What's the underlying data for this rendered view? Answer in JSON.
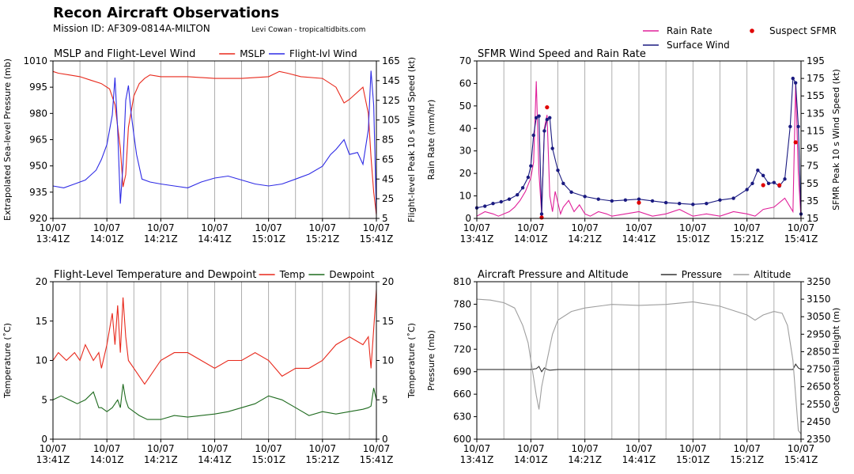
{
  "header": {
    "title": "Recon Aircraft Observations",
    "subtitle": "Mission ID: AF309-0814A-MILTON",
    "credit": "Levi Cowan - tropicaltidbits.com"
  },
  "chart_data": [
    {
      "id": "mslp_wind",
      "type": "line",
      "title": "MSLP and Flight-Level Wind",
      "x_ticks": [
        "10/07\n13:41Z",
        "10/07\n14:01Z",
        "10/07\n14:21Z",
        "10/07\n14:41Z",
        "10/07\n15:01Z",
        "10/07\n15:21Z",
        "10/07\n15:41Z"
      ],
      "x_range_minutes": [
        0,
        120
      ],
      "grid": "x-only",
      "legend_position": "top-right",
      "ylabel_left": "Extrapolated Sea-level Pressure (mb)",
      "ylabel_right": "Flight-level Peak 10 s Wind Speed (kt)",
      "yticks_left": [
        920,
        935,
        950,
        965,
        980,
        995,
        1010
      ],
      "yticks_right": [
        5,
        25,
        45,
        65,
        85,
        105,
        125,
        145,
        165
      ],
      "ylim_left": [
        920,
        1010
      ],
      "ylim_right": [
        5,
        165
      ],
      "series": [
        {
          "name": "MSLP",
          "color": "#e8291c",
          "axis": "left",
          "x": [
            0,
            2,
            6,
            10,
            14,
            18,
            21,
            23,
            25,
            26,
            27,
            28,
            30,
            32,
            34,
            36,
            40,
            45,
            50,
            60,
            70,
            80,
            84,
            87,
            92,
            100,
            105,
            108,
            110,
            115,
            117,
            118,
            119,
            120
          ],
          "y": [
            1004,
            1003,
            1002,
            1001,
            999,
            997,
            994,
            985,
            960,
            938,
            945,
            972,
            990,
            997,
            1000,
            1002,
            1001,
            1001,
            1001,
            1000,
            1000,
            1001,
            1004,
            1003,
            1001,
            1000,
            995,
            986,
            988,
            995,
            980,
            955,
            935,
            922
          ]
        },
        {
          "name": "Flight-lvl Wind",
          "color": "#2e2be5",
          "axis": "right",
          "x": [
            0,
            4,
            8,
            12,
            16,
            18,
            20,
            22,
            23,
            24,
            25,
            26,
            27,
            28,
            29,
            30,
            31,
            33,
            36,
            40,
            45,
            50,
            55,
            60,
            65,
            70,
            75,
            80,
            85,
            90,
            95,
            100,
            103,
            105,
            108,
            110,
            113,
            115,
            117,
            118,
            119,
            120
          ],
          "y": [
            38,
            36,
            40,
            44,
            54,
            65,
            80,
            110,
            148,
            95,
            20,
            60,
            125,
            140,
            112,
            90,
            70,
            45,
            42,
            40,
            38,
            36,
            42,
            46,
            48,
            44,
            40,
            38,
            40,
            45,
            50,
            58,
            70,
            75,
            85,
            70,
            72,
            60,
            95,
            155,
            120,
            10
          ]
        }
      ]
    },
    {
      "id": "sfmr_rain",
      "type": "line",
      "title": "SFMR Wind Speed and Rain Rate",
      "x_ticks": [
        "10/07\n13:41Z",
        "10/07\n14:01Z",
        "10/07\n14:21Z",
        "10/07\n14:41Z",
        "10/07\n15:01Z",
        "10/07\n15:21Z",
        "10/07\n15:41Z"
      ],
      "x_range_minutes": [
        0,
        120
      ],
      "grid": "x-only",
      "legend_position": "above-top-right",
      "ylabel_left": "Rain Rate (mm/hr)",
      "ylabel_right": "SFMR Peak 10 s Wind Speed (kt)",
      "yticks_left": [
        0,
        10,
        20,
        30,
        40,
        50,
        60,
        70
      ],
      "yticks_right": [
        15,
        35,
        55,
        75,
        95,
        115,
        135,
        155,
        175,
        195
      ],
      "ylim_left": [
        0,
        70
      ],
      "ylim_right": [
        15,
        195
      ],
      "series": [
        {
          "name": "Rain Rate",
          "color": "#e0209a",
          "axis": "left",
          "x": [
            0,
            3,
            6,
            8,
            10,
            12,
            14,
            16,
            18,
            19,
            20,
            21,
            22,
            23,
            24,
            25,
            26,
            27,
            28,
            29,
            30,
            31,
            32,
            34,
            36,
            38,
            40,
            42,
            45,
            48,
            50,
            55,
            60,
            65,
            70,
            75,
            80,
            85,
            90,
            95,
            100,
            103,
            106,
            110,
            114,
            117,
            118,
            119,
            120
          ],
          "y": [
            1,
            3,
            2,
            1,
            2,
            3,
            5,
            8,
            12,
            15,
            18,
            25,
            61,
            20,
            2,
            40,
            46,
            10,
            3,
            12,
            7,
            2,
            5,
            8,
            3,
            6,
            2,
            1,
            3,
            2,
            1,
            2,
            3,
            1,
            2,
            4,
            1,
            2,
            1,
            3,
            2,
            1,
            4,
            5,
            9,
            3,
            60,
            20,
            0
          ]
        },
        {
          "name": "Surface Wind",
          "color": "#1a1a80",
          "axis": "right",
          "x": [
            0,
            3,
            6,
            9,
            12,
            15,
            17,
            19,
            20,
            21,
            22,
            23,
            24,
            25,
            26,
            27,
            28,
            30,
            32,
            35,
            40,
            45,
            50,
            55,
            60,
            65,
            70,
            75,
            80,
            85,
            90,
            95,
            100,
            102,
            104,
            106,
            108,
            110,
            112,
            114,
            116,
            117,
            118,
            119,
            120
          ],
          "y": [
            27,
            29,
            32,
            34,
            37,
            42,
            50,
            62,
            75,
            110,
            130,
            132,
            20,
            115,
            128,
            130,
            95,
            70,
            55,
            45,
            40,
            37,
            35,
            36,
            37,
            35,
            33,
            32,
            31,
            32,
            36,
            38,
            48,
            55,
            70,
            64,
            55,
            56,
            52,
            60,
            120,
            175,
            170,
            120,
            20
          ]
        },
        {
          "name": "Suspect SFMR",
          "color": "#e00000",
          "axis": "right",
          "style": "points",
          "x": [
            24,
            26,
            60,
            106,
            112,
            118
          ],
          "y": [
            16,
            142,
            33,
            53,
            53,
            102
          ]
        }
      ]
    },
    {
      "id": "temp_dew",
      "type": "line",
      "title": "Flight-Level Temperature and Dewpoint",
      "x_ticks": [
        "10/07\n13:41Z",
        "10/07\n14:01Z",
        "10/07\n14:21Z",
        "10/07\n14:41Z",
        "10/07\n15:01Z",
        "10/07\n15:21Z",
        "10/07\n15:41Z"
      ],
      "x_range_minutes": [
        0,
        120
      ],
      "grid": "x-only",
      "legend_position": "top-right",
      "ylabel_left": "Temperature (˚C)",
      "ylabel_right": "Temperature (˚C)",
      "yticks_left": [
        0,
        5,
        10,
        15,
        20
      ],
      "yticks_right": [
        0,
        5,
        10,
        15,
        20
      ],
      "ylim_left": [
        0,
        20
      ],
      "ylim_right": [
        0,
        20
      ],
      "series": [
        {
          "name": "Temp",
          "color": "#e8291c",
          "axis": "left",
          "x": [
            0,
            2,
            5,
            8,
            10,
            12,
            15,
            17,
            18,
            20,
            22,
            23,
            24,
            25,
            26,
            27,
            28,
            30,
            32,
            34,
            36,
            40,
            45,
            50,
            55,
            60,
            65,
            70,
            75,
            80,
            85,
            90,
            95,
            100,
            105,
            110,
            115,
            117,
            118,
            119,
            120
          ],
          "y": [
            10,
            11,
            10,
            11,
            10,
            12,
            10,
            11,
            9,
            12,
            16,
            12,
            17,
            11,
            18,
            13,
            10,
            9,
            8,
            7,
            8,
            10,
            11,
            11,
            10,
            9,
            10,
            10,
            11,
            10,
            8,
            9,
            9,
            10,
            12,
            13,
            12,
            13,
            9,
            14,
            19
          ]
        },
        {
          "name": "Dewpoint",
          "color": "#1f6b1f",
          "axis": "left",
          "x": [
            0,
            3,
            6,
            9,
            12,
            15,
            17,
            18,
            20,
            22,
            24,
            25,
            26,
            27,
            28,
            30,
            32,
            35,
            40,
            45,
            50,
            55,
            60,
            65,
            70,
            75,
            80,
            85,
            90,
            95,
            100,
            105,
            110,
            115,
            117,
            118,
            119,
            120
          ],
          "y": [
            5,
            5.5,
            5,
            4.5,
            5,
            6,
            4,
            4,
            3.5,
            4,
            5,
            4,
            7,
            5,
            4,
            3.5,
            3,
            2.5,
            2.5,
            3,
            2.8,
            3,
            3.2,
            3.5,
            4,
            4.5,
            5.5,
            5,
            4,
            3,
            3.5,
            3.2,
            3.5,
            3.8,
            4,
            4.2,
            6.5,
            5
          ]
        }
      ]
    },
    {
      "id": "pres_alt",
      "type": "line",
      "title": "Aircraft Pressure and Altitude",
      "x_ticks": [
        "10/07\n13:41Z",
        "10/07\n14:01Z",
        "10/07\n14:21Z",
        "10/07\n14:41Z",
        "10/07\n15:01Z",
        "10/07\n15:21Z",
        "10/07\n15:41Z"
      ],
      "x_range_minutes": [
        0,
        120
      ],
      "grid": "x-only",
      "legend_position": "top-right",
      "ylabel_left": "Pressure (mb)",
      "ylabel_right": "Geopotential Height (m)",
      "yticks_left": [
        600,
        630,
        660,
        690,
        720,
        750,
        780,
        810
      ],
      "yticks_right": [
        2350,
        2450,
        2550,
        2650,
        2750,
        2850,
        2950,
        3050,
        3150,
        3250
      ],
      "ylim_left": [
        600,
        810
      ],
      "ylim_right": [
        2350,
        3250
      ],
      "series": [
        {
          "name": "Pressure",
          "color": "#333333",
          "axis": "left",
          "x": [
            0,
            10,
            20,
            22,
            23,
            24,
            25,
            26,
            27,
            30,
            40,
            60,
            80,
            100,
            115,
            117,
            118,
            119,
            120
          ],
          "y": [
            693,
            693,
            693,
            694,
            697,
            690,
            695,
            693,
            692,
            693,
            693,
            693,
            693,
            693,
            693,
            693,
            700,
            695,
            693
          ]
        },
        {
          "name": "Altitude",
          "color": "#9e9e9e",
          "axis": "right",
          "x": [
            0,
            5,
            10,
            14,
            17,
            19,
            21,
            22,
            23,
            24,
            26,
            28,
            30,
            35,
            40,
            50,
            60,
            70,
            80,
            90,
            100,
            103,
            106,
            110,
            113,
            115,
            117,
            118,
            119,
            120
          ],
          "y": [
            3150,
            3145,
            3130,
            3100,
            3000,
            2900,
            2700,
            2600,
            2520,
            2650,
            2800,
            2950,
            3030,
            3080,
            3100,
            3120,
            3115,
            3120,
            3135,
            3110,
            3060,
            3030,
            3060,
            3080,
            3070,
            3000,
            2800,
            2600,
            2400,
            2380
          ]
        }
      ]
    }
  ]
}
